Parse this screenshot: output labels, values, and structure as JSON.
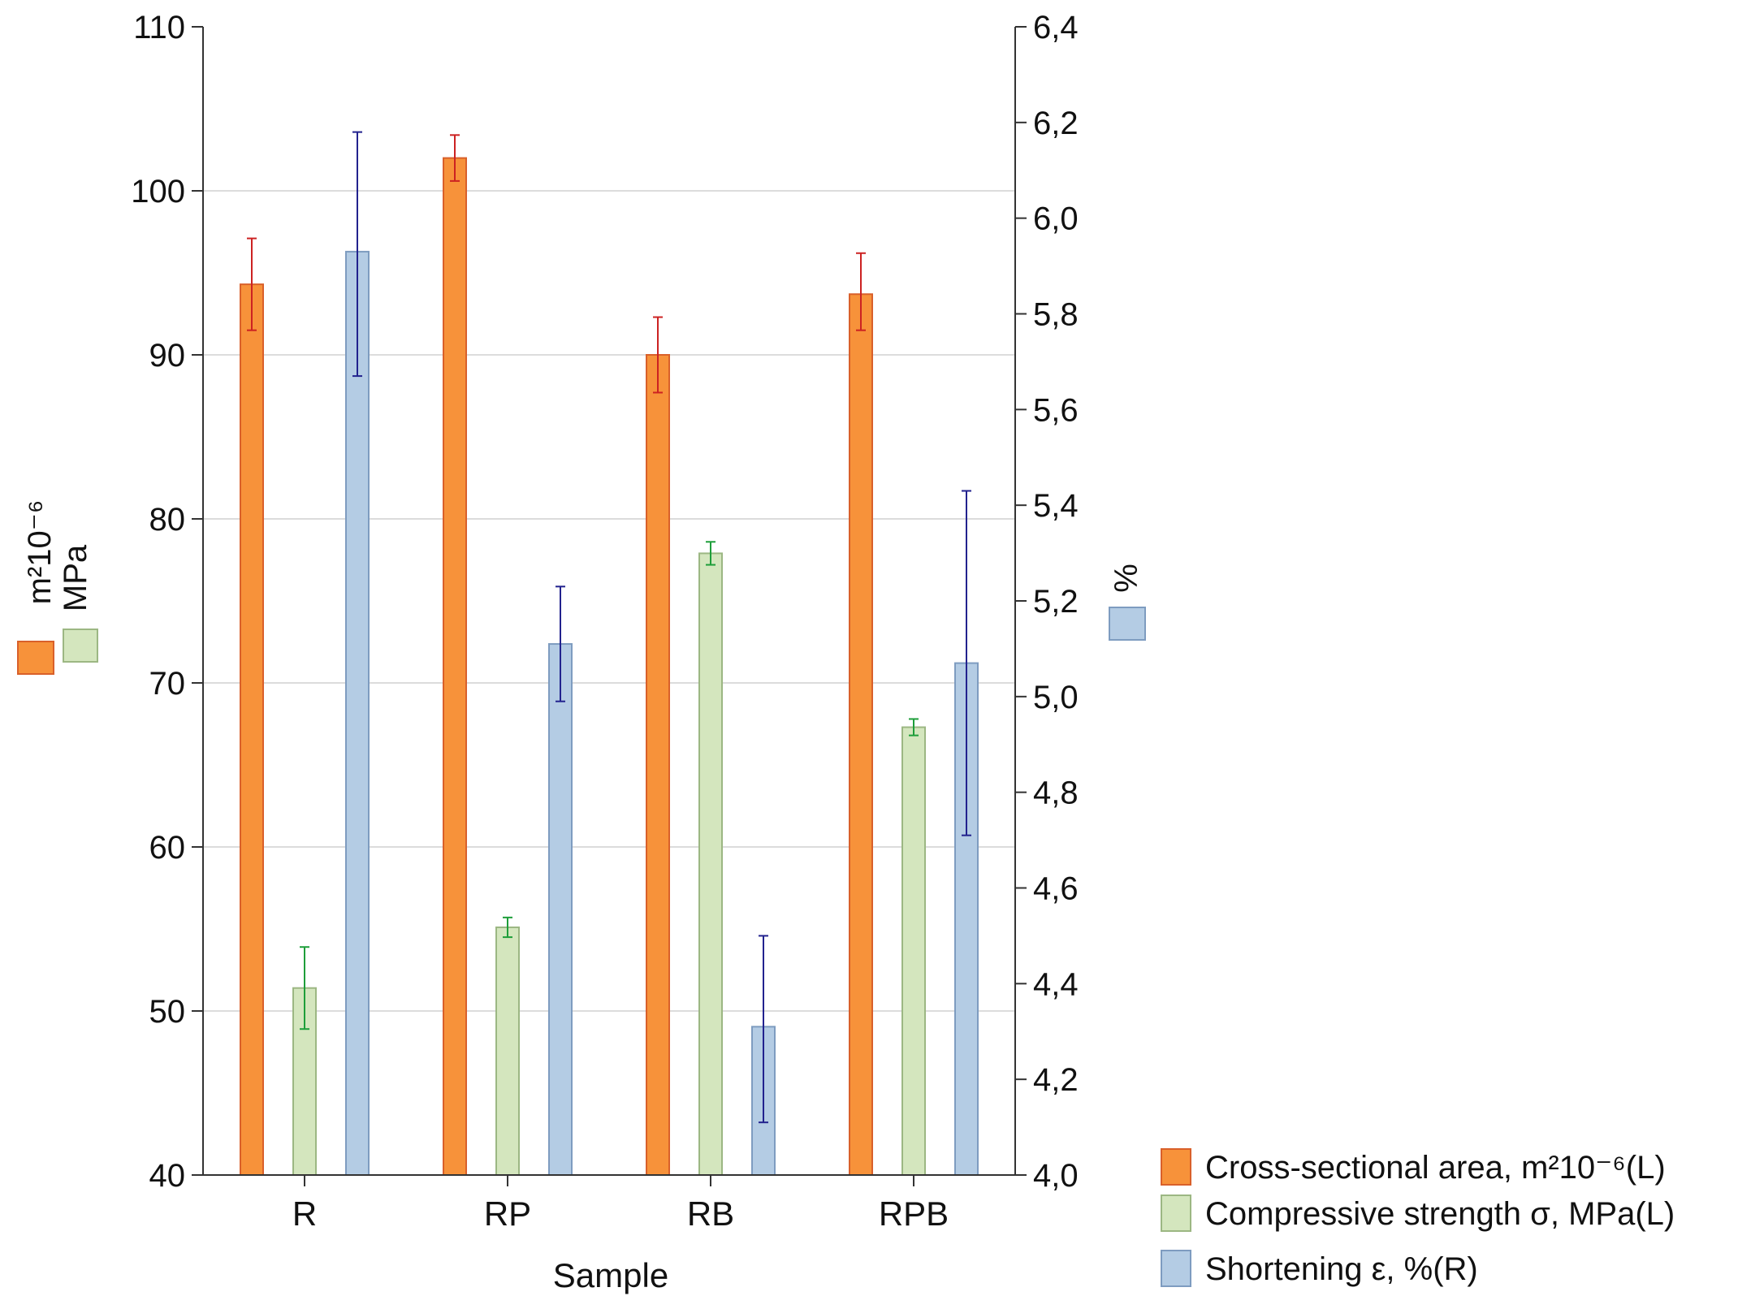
{
  "chart_data": {
    "type": "bar",
    "title": "",
    "xlabel": "Sample",
    "categories": [
      "R",
      "RP",
      "RB",
      "RPB"
    ],
    "left_axis": {
      "ylim": [
        40,
        110
      ],
      "ticks": [
        40,
        50,
        60,
        70,
        80,
        90,
        100,
        110
      ],
      "tick_labels": [
        "40",
        "50",
        "60",
        "70",
        "80",
        "90",
        "100",
        "110"
      ],
      "label_line1": "m²10⁻⁶",
      "label_line2": "MPa"
    },
    "right_axis": {
      "ylim": [
        4.0,
        6.4
      ],
      "ticks": [
        4.0,
        4.2,
        4.4,
        4.6,
        4.8,
        5.0,
        5.2,
        5.4,
        5.6,
        5.8,
        6.0,
        6.2,
        6.4
      ],
      "tick_labels": [
        "4,0",
        "4,2",
        "4,4",
        "4,6",
        "4,8",
        "5,0",
        "5,2",
        "5,4",
        "5,6",
        "5,8",
        "6,0",
        "6,2",
        "6,4"
      ],
      "label": "%"
    },
    "grid": true,
    "legend_position": "bottom-right",
    "series": [
      {
        "name": "Cross-sectional area, m²10⁻⁶(L)",
        "axis": "left",
        "color": "#F7923A",
        "stroke": "#D9602A",
        "err_color": "#CC2222",
        "values": [
          94.3,
          102.0,
          90.0,
          93.7
        ],
        "err_low": [
          91.5,
          100.6,
          87.7,
          91.5
        ],
        "err_high": [
          97.1,
          103.4,
          92.3,
          96.2
        ]
      },
      {
        "name": "Compressive strength σ, MPa(L)",
        "axis": "left",
        "color": "#D4E6BE",
        "stroke": "#9CB783",
        "err_color": "#1E9E3A",
        "values": [
          51.4,
          55.1,
          77.9,
          67.3
        ],
        "err_low": [
          48.9,
          54.5,
          77.2,
          66.8
        ],
        "err_high": [
          53.9,
          55.7,
          78.6,
          67.8
        ]
      },
      {
        "name": "Shortening ε, %(R)",
        "axis": "right",
        "color": "#B4CCE4",
        "stroke": "#7E9CC0",
        "err_color": "#22228E",
        "values": [
          5.93,
          5.11,
          4.31,
          5.07
        ],
        "err_low": [
          5.67,
          4.99,
          4.11,
          4.71
        ],
        "err_high": [
          6.18,
          5.23,
          4.5,
          5.43
        ]
      }
    ]
  }
}
